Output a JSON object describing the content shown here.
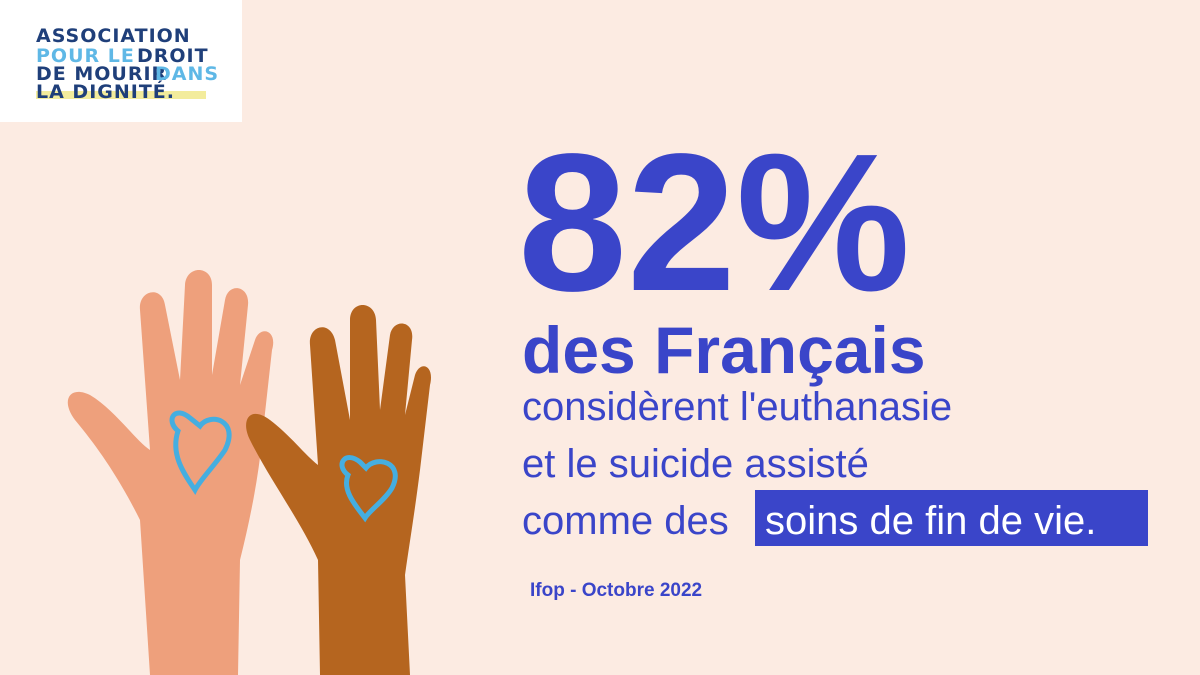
{
  "logo": {
    "line1": "ASSOCIATION",
    "line2a": "POUR LE",
    "line2b": "DROIT",
    "line3a": "DE MOURIR",
    "line3b": "DANS",
    "line4": "LA DIGNITÉ."
  },
  "headline": {
    "stat": "82%",
    "subject": "des Français",
    "line1": "considèrent l'euthanasie",
    "line2": "et le suicide assisté",
    "line3a": "comme des",
    "line3b": "soins de fin de vie."
  },
  "source": "Ifop - Octobre 2022"
}
